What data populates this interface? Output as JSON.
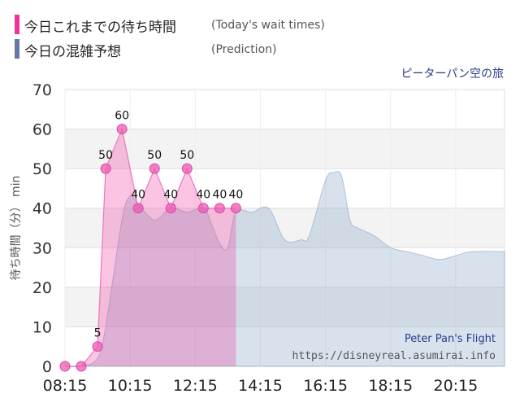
{
  "legend": {
    "items": [
      {
        "label": "今日これまでの待ち時間",
        "note": "(Today's wait times)",
        "color": "#ee3399"
      },
      {
        "label": "今日の混雑予想",
        "note": "(Prediction)",
        "color": "#6677aa"
      }
    ]
  },
  "attraction_jp": "ピーターパン空の旅",
  "chart_data": {
    "type": "area",
    "title": "",
    "ylabel_jp": "待ち時間（分）",
    "ylabel_unit": "min",
    "ylim": [
      0,
      70
    ],
    "yticks": [
      0,
      10,
      20,
      30,
      40,
      50,
      60,
      70
    ],
    "xlim": [
      "08:15",
      "21:45"
    ],
    "xticks": [
      "08:15",
      "10:15",
      "12:15",
      "14:15",
      "16:15",
      "18:15",
      "20:15"
    ],
    "grid": true,
    "series": [
      {
        "name": "今日これまでの待ち時間",
        "color": "#ee3399",
        "x": [
          "08:15",
          "08:45",
          "09:15",
          "09:30",
          "10:00",
          "10:30",
          "11:00",
          "11:30",
          "12:00",
          "12:30",
          "13:00",
          "13:30"
        ],
        "values": [
          0,
          0,
          5,
          50,
          60,
          40,
          50,
          40,
          50,
          40,
          40,
          40
        ],
        "labels": [
          "",
          "",
          "5",
          "50",
          "60",
          "40",
          "50",
          "40",
          "50",
          "40",
          "40",
          "40"
        ]
      },
      {
        "name": "今日の混雑予想",
        "color": "#7a99bb",
        "x": [
          "08:15",
          "08:45",
          "09:15",
          "09:30",
          "10:00",
          "10:15",
          "10:30",
          "11:00",
          "11:30",
          "12:00",
          "12:30",
          "12:45",
          "13:00",
          "13:15",
          "13:30",
          "14:00",
          "14:30",
          "15:00",
          "15:30",
          "15:45",
          "16:15",
          "16:30",
          "16:45",
          "17:00",
          "17:15",
          "17:45",
          "18:15",
          "18:45",
          "19:15",
          "19:45",
          "20:15",
          "20:45",
          "21:45"
        ],
        "values": [
          0,
          0,
          2,
          10,
          37,
          43,
          41,
          37,
          40,
          39,
          40,
          36,
          31,
          30,
          39,
          39,
          40,
          32,
          32,
          33,
          47,
          49,
          48,
          37,
          35,
          33,
          30,
          29,
          28,
          27,
          28,
          29,
          29
        ]
      }
    ]
  },
  "watermark": {
    "title": "Peter Pan's Flight",
    "url": "https://disneyreal.asumirai.info"
  }
}
